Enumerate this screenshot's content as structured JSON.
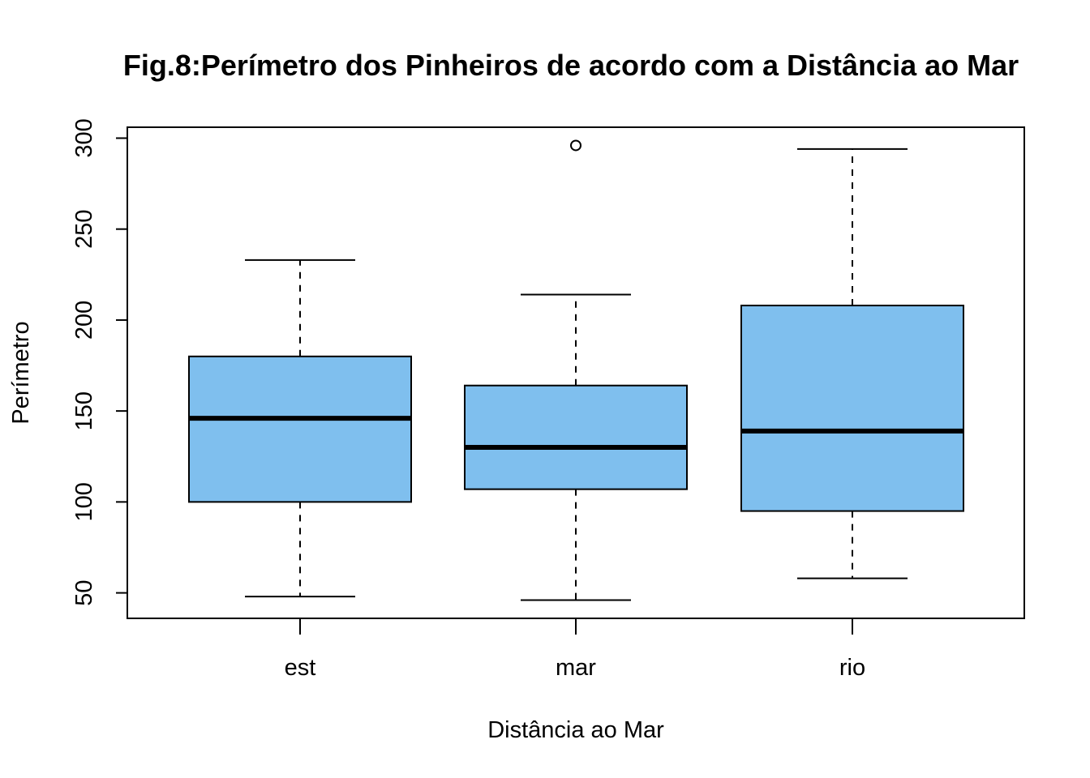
{
  "chart_data": {
    "type": "boxplot",
    "title": "Fig.8:Perímetro dos Pinheiros de acordo com a Distância ao Mar",
    "xlabel": "Distância ao Mar",
    "ylabel": "Perímetro",
    "categories": [
      "est",
      "mar",
      "rio"
    ],
    "yticks": [
      "50",
      "100",
      "150",
      "200",
      "250",
      "300"
    ],
    "ylim": [
      36,
      306
    ],
    "grid": false,
    "box_fill": "#7fbfee",
    "boxes": [
      {
        "category": "est",
        "whisker_low": 48,
        "q1": 100,
        "median": 146,
        "q3": 180,
        "whisker_high": 233,
        "outliers": []
      },
      {
        "category": "mar",
        "whisker_low": 46,
        "q1": 107,
        "median": 130,
        "q3": 164,
        "whisker_high": 214,
        "outliers": [
          296
        ]
      },
      {
        "category": "rio",
        "whisker_low": 58,
        "q1": 95,
        "median": 139,
        "q3": 208,
        "whisker_high": 294,
        "outliers": []
      }
    ]
  }
}
